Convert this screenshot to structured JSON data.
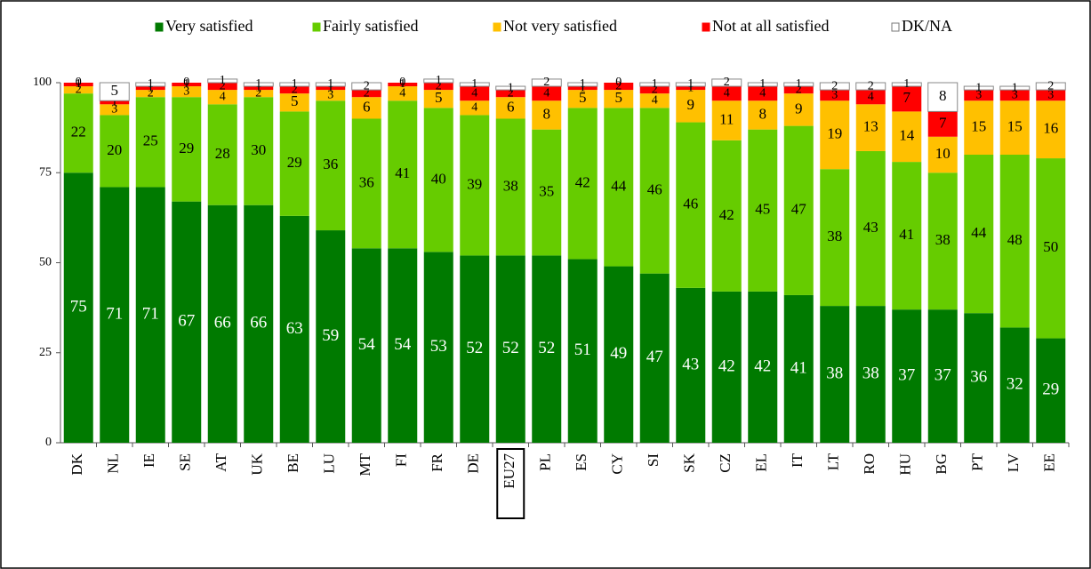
{
  "chart_data": {
    "type": "stacked_bar",
    "categories": [
      "DK",
      "NL",
      "IE",
      "SE",
      "AT",
      "UK",
      "BE",
      "LU",
      "MT",
      "FI",
      "FR",
      "DE",
      "EU27",
      "PL",
      "ES",
      "CY",
      "SI",
      "SK",
      "CZ",
      "EL",
      "IT",
      "LT",
      "RO",
      "HU",
      "BG",
      "PT",
      "LV",
      "EE"
    ],
    "series": [
      {
        "name": "Very satisfied",
        "color": "#007a00",
        "label_color": "#ffffff",
        "values": [
          75,
          71,
          71,
          67,
          66,
          66,
          63,
          59,
          54,
          54,
          53,
          52,
          52,
          52,
          51,
          49,
          47,
          43,
          42,
          42,
          41,
          38,
          38,
          37,
          37,
          36,
          32,
          29
        ]
      },
      {
        "name": "Fairly satisfied",
        "color": "#66cc00",
        "label_color": "#000000",
        "values": [
          22,
          20,
          25,
          29,
          28,
          30,
          29,
          36,
          36,
          41,
          40,
          39,
          38,
          35,
          42,
          44,
          46,
          46,
          42,
          45,
          47,
          38,
          43,
          41,
          38,
          44,
          48,
          50
        ]
      },
      {
        "name": "Not very satisfied",
        "color": "#ffc000",
        "label_color": "#000000",
        "values": [
          2,
          3,
          2,
          3,
          4,
          2,
          5,
          3,
          6,
          4,
          5,
          4,
          6,
          8,
          5,
          5,
          4,
          9,
          11,
          8,
          9,
          19,
          13,
          14,
          10,
          15,
          15,
          16
        ]
      },
      {
        "name": "Not at all satisfied",
        "color": "#ff0000",
        "label_color": "#000000",
        "values": [
          1,
          1,
          1,
          1,
          2,
          1,
          2,
          1,
          2,
          1,
          2,
          4,
          2,
          4,
          1,
          2,
          2,
          1,
          4,
          4,
          2,
          3,
          4,
          7,
          7,
          3,
          3,
          3
        ]
      },
      {
        "name": "DK/NA",
        "color": "#ffffff",
        "label_color": "#000000",
        "values": [
          0,
          5,
          1,
          0,
          1,
          1,
          1,
          1,
          2,
          0,
          1,
          1,
          1,
          2,
          1,
          0,
          1,
          1,
          2,
          1,
          1,
          2,
          2,
          1,
          8,
          1,
          1,
          2
        ]
      }
    ],
    "ylim": [
      0,
      100
    ],
    "yticks": [
      0,
      25,
      50,
      75,
      100
    ],
    "highlight": "EU27"
  }
}
